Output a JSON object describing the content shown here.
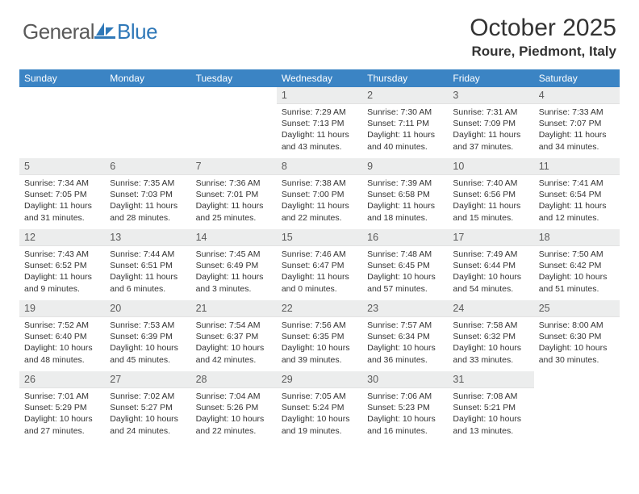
{
  "logo": {
    "text_gray": "General",
    "text_blue": "Blue"
  },
  "title": "October 2025",
  "location": "Roure, Piedmont, Italy",
  "colors": {
    "header_bg": "#3b84c4",
    "header_text": "#ffffff",
    "daynum_bg": "#eceded",
    "daynum_text": "#5a5a5a",
    "body_text": "#333333",
    "logo_gray": "#5a5a5a",
    "logo_blue": "#2f78b8"
  },
  "weekdays": [
    "Sunday",
    "Monday",
    "Tuesday",
    "Wednesday",
    "Thursday",
    "Friday",
    "Saturday"
  ],
  "weeks": [
    [
      null,
      null,
      null,
      {
        "n": "1",
        "sr": "7:29 AM",
        "ss": "7:13 PM",
        "dl": "11 hours and 43 minutes."
      },
      {
        "n": "2",
        "sr": "7:30 AM",
        "ss": "7:11 PM",
        "dl": "11 hours and 40 minutes."
      },
      {
        "n": "3",
        "sr": "7:31 AM",
        "ss": "7:09 PM",
        "dl": "11 hours and 37 minutes."
      },
      {
        "n": "4",
        "sr": "7:33 AM",
        "ss": "7:07 PM",
        "dl": "11 hours and 34 minutes."
      }
    ],
    [
      {
        "n": "5",
        "sr": "7:34 AM",
        "ss": "7:05 PM",
        "dl": "11 hours and 31 minutes."
      },
      {
        "n": "6",
        "sr": "7:35 AM",
        "ss": "7:03 PM",
        "dl": "11 hours and 28 minutes."
      },
      {
        "n": "7",
        "sr": "7:36 AM",
        "ss": "7:01 PM",
        "dl": "11 hours and 25 minutes."
      },
      {
        "n": "8",
        "sr": "7:38 AM",
        "ss": "7:00 PM",
        "dl": "11 hours and 22 minutes."
      },
      {
        "n": "9",
        "sr": "7:39 AM",
        "ss": "6:58 PM",
        "dl": "11 hours and 18 minutes."
      },
      {
        "n": "10",
        "sr": "7:40 AM",
        "ss": "6:56 PM",
        "dl": "11 hours and 15 minutes."
      },
      {
        "n": "11",
        "sr": "7:41 AM",
        "ss": "6:54 PM",
        "dl": "11 hours and 12 minutes."
      }
    ],
    [
      {
        "n": "12",
        "sr": "7:43 AM",
        "ss": "6:52 PM",
        "dl": "11 hours and 9 minutes."
      },
      {
        "n": "13",
        "sr": "7:44 AM",
        "ss": "6:51 PM",
        "dl": "11 hours and 6 minutes."
      },
      {
        "n": "14",
        "sr": "7:45 AM",
        "ss": "6:49 PM",
        "dl": "11 hours and 3 minutes."
      },
      {
        "n": "15",
        "sr": "7:46 AM",
        "ss": "6:47 PM",
        "dl": "11 hours and 0 minutes."
      },
      {
        "n": "16",
        "sr": "7:48 AM",
        "ss": "6:45 PM",
        "dl": "10 hours and 57 minutes."
      },
      {
        "n": "17",
        "sr": "7:49 AM",
        "ss": "6:44 PM",
        "dl": "10 hours and 54 minutes."
      },
      {
        "n": "18",
        "sr": "7:50 AM",
        "ss": "6:42 PM",
        "dl": "10 hours and 51 minutes."
      }
    ],
    [
      {
        "n": "19",
        "sr": "7:52 AM",
        "ss": "6:40 PM",
        "dl": "10 hours and 48 minutes."
      },
      {
        "n": "20",
        "sr": "7:53 AM",
        "ss": "6:39 PM",
        "dl": "10 hours and 45 minutes."
      },
      {
        "n": "21",
        "sr": "7:54 AM",
        "ss": "6:37 PM",
        "dl": "10 hours and 42 minutes."
      },
      {
        "n": "22",
        "sr": "7:56 AM",
        "ss": "6:35 PM",
        "dl": "10 hours and 39 minutes."
      },
      {
        "n": "23",
        "sr": "7:57 AM",
        "ss": "6:34 PM",
        "dl": "10 hours and 36 minutes."
      },
      {
        "n": "24",
        "sr": "7:58 AM",
        "ss": "6:32 PM",
        "dl": "10 hours and 33 minutes."
      },
      {
        "n": "25",
        "sr": "8:00 AM",
        "ss": "6:30 PM",
        "dl": "10 hours and 30 minutes."
      }
    ],
    [
      {
        "n": "26",
        "sr": "7:01 AM",
        "ss": "5:29 PM",
        "dl": "10 hours and 27 minutes."
      },
      {
        "n": "27",
        "sr": "7:02 AM",
        "ss": "5:27 PM",
        "dl": "10 hours and 24 minutes."
      },
      {
        "n": "28",
        "sr": "7:04 AM",
        "ss": "5:26 PM",
        "dl": "10 hours and 22 minutes."
      },
      {
        "n": "29",
        "sr": "7:05 AM",
        "ss": "5:24 PM",
        "dl": "10 hours and 19 minutes."
      },
      {
        "n": "30",
        "sr": "7:06 AM",
        "ss": "5:23 PM",
        "dl": "10 hours and 16 minutes."
      },
      {
        "n": "31",
        "sr": "7:08 AM",
        "ss": "5:21 PM",
        "dl": "10 hours and 13 minutes."
      },
      null
    ]
  ],
  "labels": {
    "sunrise": "Sunrise:",
    "sunset": "Sunset:",
    "daylight": "Daylight:"
  }
}
